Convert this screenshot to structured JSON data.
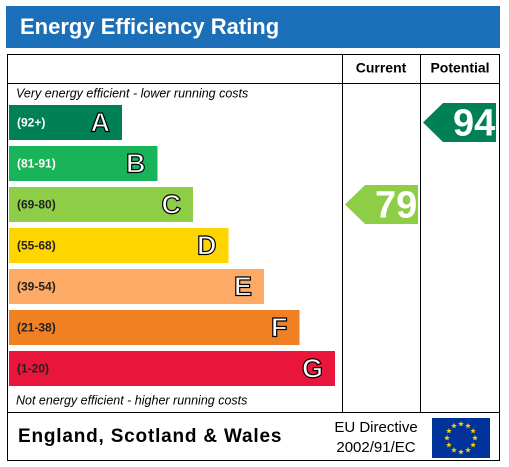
{
  "title": "Energy Efficiency Rating",
  "columns": [
    "Current",
    "Potential"
  ],
  "top_note": "Very energy efficient - lower running costs",
  "bottom_note": "Not energy efficient - higher running costs",
  "bands": [
    {
      "range": "(92+)",
      "letter": "A",
      "color": "#008054"
    },
    {
      "range": "(81-91)",
      "letter": "B",
      "color": "#19b459"
    },
    {
      "range": "(69-80)",
      "letter": "C",
      "color": "#8dce46"
    },
    {
      "range": "(55-68)",
      "letter": "D",
      "color": "#ffd500"
    },
    {
      "range": "(39-54)",
      "letter": "E",
      "color": "#fcaa65"
    },
    {
      "range": "(21-38)",
      "letter": "F",
      "color": "#ef8023"
    },
    {
      "range": "(1-20)",
      "letter": "G",
      "color": "#e9153b"
    }
  ],
  "current": 79,
  "potential": 94,
  "footer": {
    "region": "England, Scotland & Wales",
    "directive_line1": "EU Directive",
    "directive_line2": "2002/91/EC"
  }
}
